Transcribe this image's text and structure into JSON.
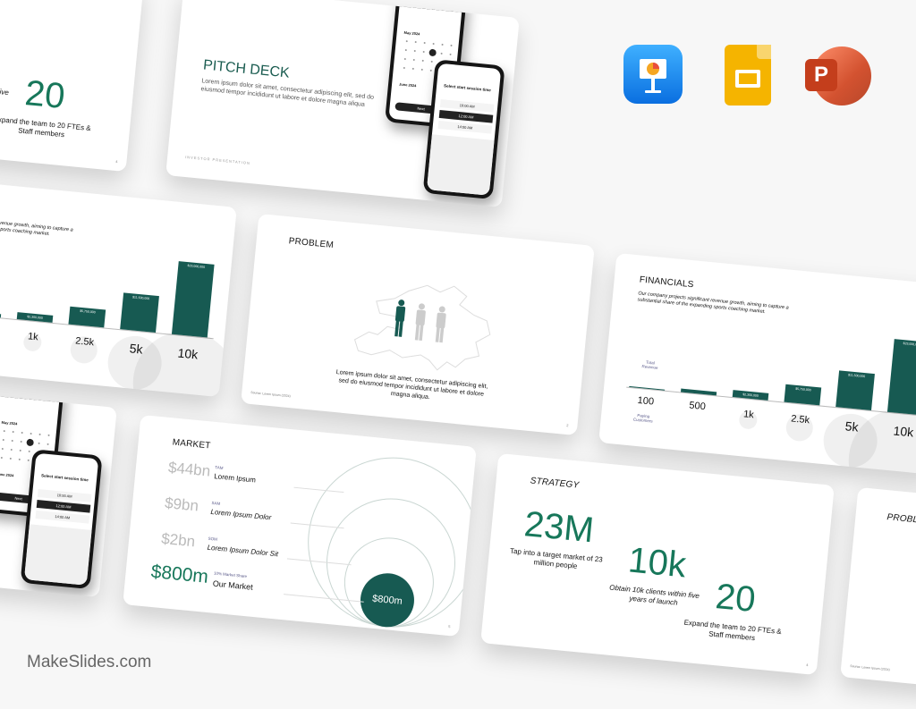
{
  "brand": {
    "watermark": "MakeSlides.com"
  },
  "apps": [
    {
      "name": "keynote-icon",
      "color": "#1a8cf5"
    },
    {
      "name": "google-slides-icon",
      "color": "#f5b400"
    },
    {
      "name": "powerpoint-icon",
      "color": "#d24726"
    }
  ],
  "colors": {
    "accent": "#175a52",
    "green_text": "#17775a"
  },
  "pitch": {
    "title": "PITCH DECK",
    "body": "Lorem ipsum dolor sit amet, consectetur adipiscing elit, sed do eiusmod tempor incididunt ut labore et dolore magna aliqua",
    "footer": "INVESTOR PRESENTATION",
    "phone1": {
      "heading": "Select start session date",
      "month1": "May 2024",
      "month2": "June 2024",
      "button": "Next"
    },
    "phone2": {
      "heading": "Select start session time",
      "slot1": "10:00 AM",
      "slot2": "12:00 AM",
      "slot3": "14:00 AM"
    }
  },
  "strategy": {
    "title": "STRATEGY",
    "stats": [
      {
        "value": "23M",
        "caption": "Tap into a target market of 23 million people"
      },
      {
        "value": "10k",
        "caption": "Obtain 10k clients within five years of launch"
      },
      {
        "value": "20",
        "caption": "Expand the team to 20 FTEs & Staff members"
      }
    ]
  },
  "financials": {
    "title": "FINANCIALS",
    "body": "Our company projects significant revenue growth, aiming to capture a substantial share of the expanding sports coaching market.",
    "revenue_label": "Total Revenue",
    "customers_label": "Paying Customers",
    "bars": [
      {
        "customers": "100",
        "revenue": 230000,
        "label": ""
      },
      {
        "customers": "500",
        "revenue": 1150000,
        "label": "$1,150,000"
      },
      {
        "customers": "1k",
        "revenue": 2300000,
        "label": "$2,300,000"
      },
      {
        "customers": "2.5k",
        "revenue": 5750000,
        "label": "$5,750,000"
      },
      {
        "customers": "5k",
        "revenue": 11500000,
        "label": "$11,500,000"
      },
      {
        "customers": "10k",
        "revenue": 23000000,
        "label": "$23,000,000"
      }
    ]
  },
  "problem": {
    "title": "PROBLEM",
    "body": "Lorem ipsum dolor sit amet, consectetur adipiscing elit, sed do eiusmod tempor incididunt ut labore et dolore magna aliqua.",
    "source": "Source: Lorem Ipsum (2024)"
  },
  "market": {
    "title": "MARKET",
    "rows": [
      {
        "value": "$44bn",
        "tag": "TAM",
        "label": "Lorem Ipsum"
      },
      {
        "value": "$9bn",
        "tag": "SAM",
        "label": "Lorem Ipsum Dolor"
      },
      {
        "value": "$2bn",
        "tag": "SOM",
        "label": "Lorem Ipsum Dolor Sit"
      },
      {
        "value": "$800m",
        "tag": "10% Market Share",
        "label": "Our Market"
      }
    ],
    "bubble": "$800m"
  }
}
